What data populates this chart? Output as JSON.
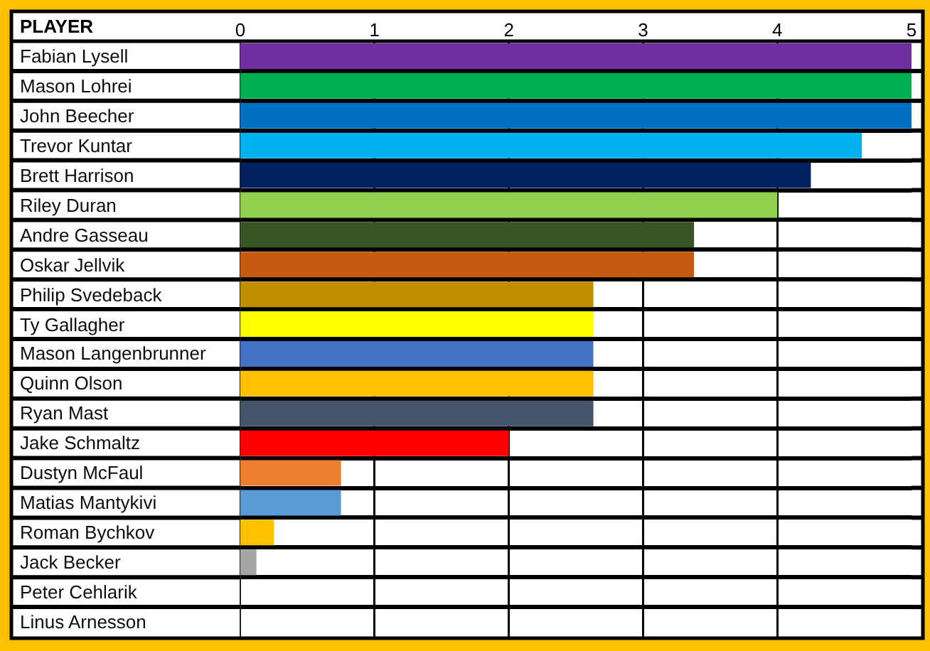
{
  "chart_data": {
    "type": "bar",
    "orientation": "horizontal",
    "ylabel": "PLAYER",
    "categories": [
      "Fabian Lysell",
      "Mason Lohrei",
      "John Beecher",
      "Trevor Kuntar",
      "Brett Harrison",
      "Riley Duran",
      "Andre Gasseau",
      "Oskar Jellvik",
      "Philip Svedeback",
      "Ty Gallagher",
      "Mason Langenbrunner",
      "Quinn Olson",
      "Ryan Mast",
      "Jake Schmaltz",
      "Dustyn McFaul",
      "Matias Mantykivi",
      "Roman Bychkov",
      "Jack Becker",
      "Peter Cehlarik",
      "Linus Arnesson"
    ],
    "values": [
      5,
      5,
      5,
      4.63,
      4.25,
      4,
      3.38,
      3.38,
      2.63,
      2.63,
      2.63,
      2.63,
      2.63,
      2,
      0.75,
      0.75,
      0.25,
      0.12,
      0,
      0
    ],
    "colors": [
      "#7030a0",
      "#00b050",
      "#0070c0",
      "#00b0f0",
      "#002060",
      "#92d050",
      "#375623",
      "#c55a11",
      "#bf8f00",
      "#ffff00",
      "#4472c4",
      "#ffc000",
      "#44546a",
      "#ff0000",
      "#ed7d31",
      "#5b9bd5",
      "#ffc000",
      "#a5a5a5",
      null,
      null
    ],
    "xlim": [
      0,
      5
    ],
    "xticks": [
      0,
      1,
      2,
      3,
      4,
      5
    ],
    "grid": true
  }
}
